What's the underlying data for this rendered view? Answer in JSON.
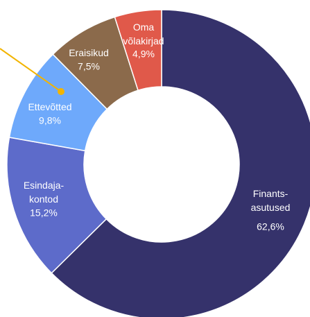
{
  "chart_data": {
    "type": "donut",
    "categories": [
      "Finants-\nasutused",
      "Esindaja-\nkontod",
      "Ettevõtted",
      "Eraisikud",
      "Oma\nvõlakirjad"
    ],
    "values": [
      62.6,
      15.2,
      9.8,
      7.5,
      4.9
    ],
    "value_labels": [
      "62,6%",
      "15,2%",
      "9,8%",
      "7,5%",
      "4,9%"
    ],
    "colors": [
      "#35326b",
      "#5d6bca",
      "#6ea9fb",
      "#8b6a4b",
      "#e0594a"
    ]
  }
}
